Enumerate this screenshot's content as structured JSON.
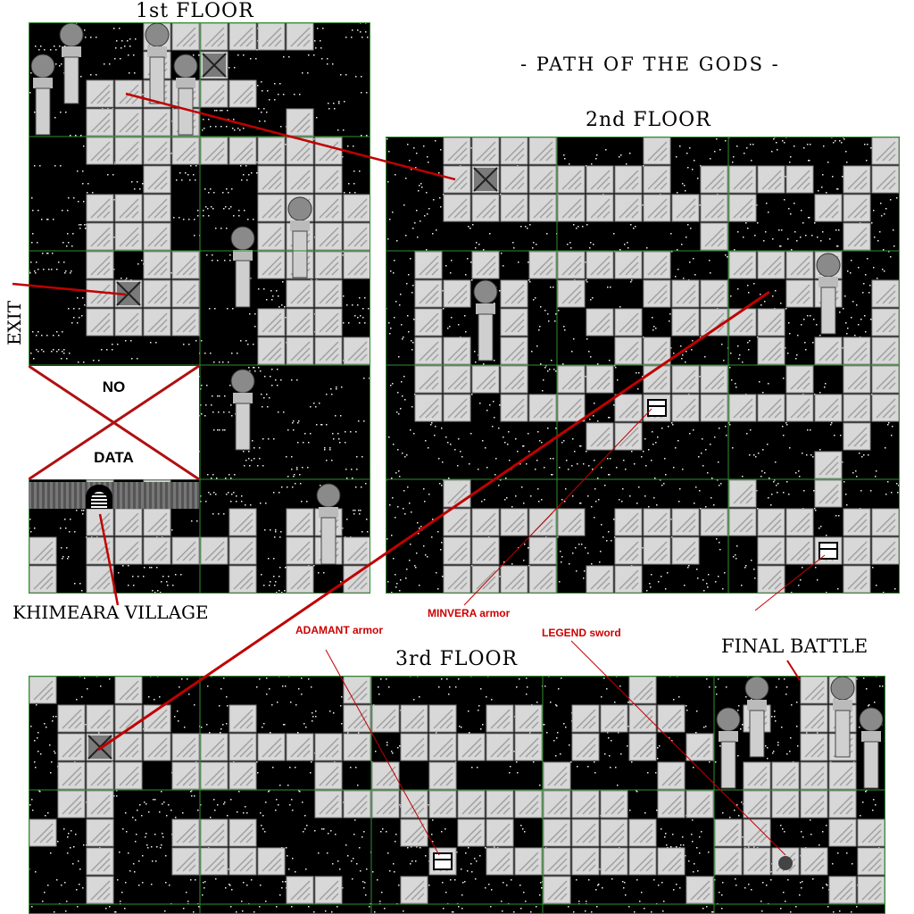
{
  "labels": {
    "main_title": "- PATH OF THE GODS -",
    "floor1": "1st FLOOR",
    "floor2": "2nd FLOOR",
    "floor3": "3rd FLOOR",
    "exit": "EXIT",
    "village": "KHIMEARA VILLAGE",
    "final_battle": "FINAL BATTLE",
    "nodata_top": "NO",
    "nodata_bottom": "DATA"
  },
  "items": {
    "minvera": "MINVERA armor",
    "adamant": "ADAMANT armor",
    "legend": "LEGEND sword"
  },
  "colors": {
    "accent_red": "#cc0000",
    "grid_green": "#2f8f2f",
    "floor_tile": "#d8d8d8",
    "background": "#000000"
  },
  "icons": [
    "pillar-icon",
    "stairs-x-icon",
    "treasure-chest-icon",
    "hero-sprite-icon",
    "village-gate-icon"
  ]
}
